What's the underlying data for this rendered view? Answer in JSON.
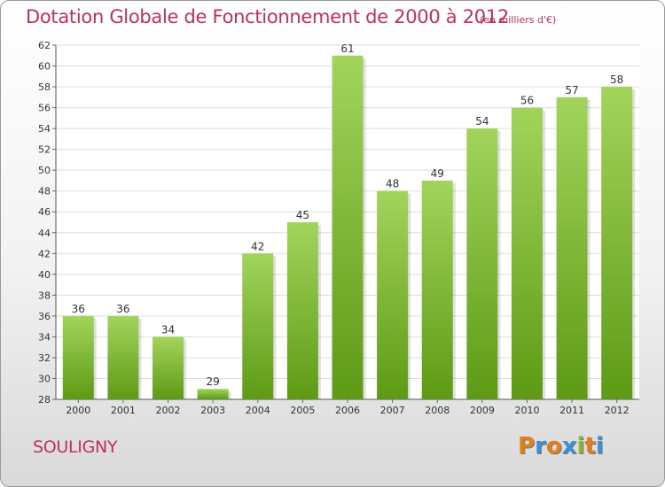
{
  "chart_data": {
    "type": "bar",
    "title": "Dotation Globale de Fonctionnement de 2000 à 2012",
    "subtitle": "(en milliers d'€)",
    "categories": [
      "2000",
      "2001",
      "2002",
      "2003",
      "2004",
      "2005",
      "2006",
      "2007",
      "2008",
      "2009",
      "2010",
      "2011",
      "2012"
    ],
    "values": [
      36,
      36,
      34,
      29,
      42,
      45,
      61,
      48,
      49,
      54,
      56,
      57,
      58
    ],
    "ylim": [
      28,
      62
    ],
    "yticks": [
      28,
      30,
      32,
      34,
      36,
      38,
      40,
      42,
      44,
      46,
      48,
      50,
      52,
      54,
      56,
      58,
      60,
      62
    ],
    "grid": true,
    "bar_color": "#7db83a",
    "bar_color_light": "#a2d45c",
    "bar_color_dark": "#5e9a15"
  },
  "commune": "SOULIGNY",
  "brand": {
    "letters": [
      "P",
      "r",
      "o",
      "x",
      "i",
      "t",
      "i"
    ],
    "colors": [
      "#e0801b",
      "#3d8fd6",
      "#e0801b",
      "#3d8fd6",
      "#8ab833",
      "#e0801b",
      "#3d8fd6"
    ]
  },
  "title_color": "#c0315a"
}
